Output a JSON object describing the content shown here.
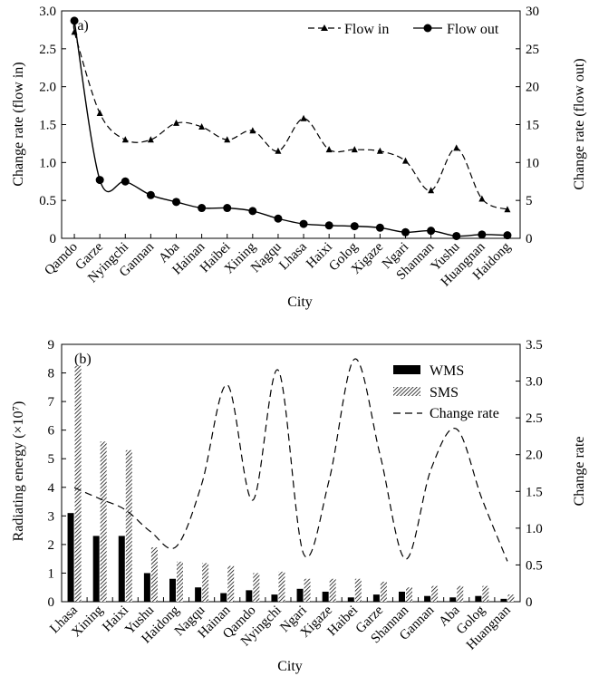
{
  "colors": {
    "axis": "#000000",
    "wms_bar": "#000000",
    "sms_bar_hatch": "#000000",
    "background": "#ffffff"
  },
  "chart_data": [
    {
      "type": "line",
      "panel_label": "(a)",
      "xlabel": "City",
      "ylabel_left": "Change rate (flow in)",
      "ylabel_right": "Change rate (flow out)",
      "ylim_left": [
        0,
        3.0
      ],
      "ylim_right": [
        0,
        30
      ],
      "yticks_left": [
        "0",
        "0.5",
        "1.0",
        "1.5",
        "2.0",
        "2.5",
        "3.0"
      ],
      "yticks_right": [
        "0",
        "5",
        "10",
        "15",
        "20",
        "25",
        "30"
      ],
      "legend_position": "top-right",
      "categories": [
        "Qamdo",
        "Garze",
        "Nyingchi",
        "Gannan",
        "Aba",
        "Hainan",
        "Haibei",
        "Xining",
        "Nagqu",
        "Lhasa",
        "Haixi",
        "Golog",
        "Xigaze",
        "Ngari",
        "Shannan",
        "Yushu",
        "Huangnan",
        "Haidong"
      ],
      "series": [
        {
          "name": "Flow in",
          "axis": "left",
          "style": "dashed line, triangle markers",
          "values": [
            2.72,
            1.65,
            1.3,
            1.3,
            1.52,
            1.47,
            1.3,
            1.42,
            1.15,
            1.58,
            1.17,
            1.17,
            1.15,
            1.02,
            0.63,
            1.19,
            0.52,
            0.38
          ]
        },
        {
          "name": "Flow out",
          "axis": "right",
          "style": "solid line, circle markers",
          "values": [
            28.7,
            7.7,
            7.5,
            5.7,
            4.8,
            4.0,
            4.0,
            3.6,
            2.6,
            1.9,
            1.7,
            1.6,
            1.4,
            0.8,
            1.0,
            0.3,
            0.5,
            0.4
          ]
        }
      ]
    },
    {
      "type": "bar",
      "panel_label": "(b)",
      "xlabel": "City",
      "ylabel_left": "Radiating energy (×10⁷)",
      "ylabel_right": "Change rate",
      "ylim_left": [
        0,
        9
      ],
      "ylim_right": [
        0,
        3.5
      ],
      "yticks_left": [
        "0",
        "1",
        "2",
        "3",
        "4",
        "5",
        "6",
        "7",
        "8",
        "9"
      ],
      "yticks_right": [
        "0",
        "0.5",
        "1.0",
        "1.5",
        "2.0",
        "2.5",
        "3.0",
        "3.5"
      ],
      "legend_position": "top-right",
      "categories": [
        "Lhasa",
        "Xining",
        "Haixi",
        "Yushu",
        "Haidong",
        "Nagqu",
        "Hainan",
        "Qamdo",
        "Nyingchi",
        "Ngari",
        "Xigaze",
        "Haibei",
        "Garze",
        "Shannan",
        "Gannan",
        "Aba",
        "Golog",
        "Huangnan"
      ],
      "series": [
        {
          "name": "WMS",
          "axis": "left",
          "style": "solid black bar",
          "values": [
            3.1,
            2.3,
            2.3,
            1.0,
            0.8,
            0.5,
            0.3,
            0.4,
            0.25,
            0.45,
            0.35,
            0.15,
            0.25,
            0.35,
            0.2,
            0.15,
            0.2,
            0.1
          ]
        },
        {
          "name": "SMS",
          "axis": "left",
          "style": "hatched bar",
          "values": [
            8.25,
            5.6,
            5.3,
            1.9,
            1.4,
            1.35,
            1.25,
            1.0,
            1.05,
            0.8,
            0.8,
            0.8,
            0.7,
            0.5,
            0.55,
            0.55,
            0.55,
            0.25
          ]
        },
        {
          "name": "Change rate",
          "axis": "right",
          "style": "dashed smooth line",
          "values": [
            1.55,
            1.4,
            1.25,
            0.95,
            0.75,
            1.6,
            2.95,
            1.38,
            3.15,
            0.65,
            1.65,
            3.3,
            2.0,
            0.58,
            1.8,
            2.35,
            1.4,
            0.55
          ]
        }
      ]
    }
  ]
}
